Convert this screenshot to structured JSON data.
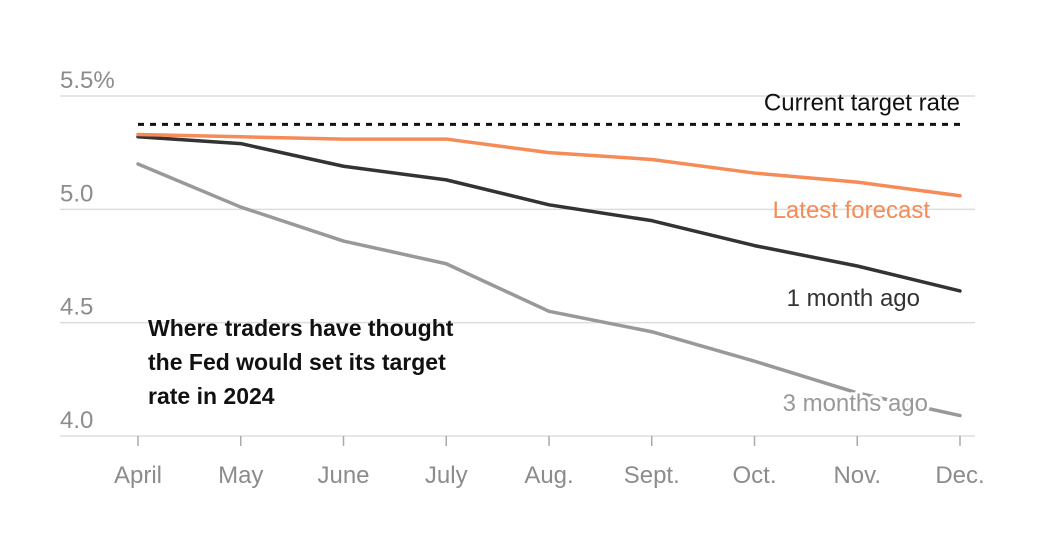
{
  "chart_data": {
    "type": "line",
    "title": "Where traders have thought the Fed would set its target rate in 2024",
    "title_lines": [
      "Where traders have thought",
      "the Fed would set its target",
      "rate in 2024"
    ],
    "categories": [
      "April",
      "May",
      "June",
      "July",
      "Aug.",
      "Sept.",
      "Oct.",
      "Nov.",
      "Dec."
    ],
    "ylim": [
      4.0,
      5.5
    ],
    "yticks": [
      4.0,
      4.5,
      5.0,
      5.5
    ],
    "ytick_labels": [
      "4.0",
      "4.5",
      "5.0",
      "5.5%"
    ],
    "grid": true,
    "reference_line": {
      "name": "Current target rate",
      "value": 5.375,
      "style": "dotted",
      "color": "#111111"
    },
    "series": [
      {
        "name": "Latest forecast",
        "color": "#f58b56",
        "values": [
          5.33,
          5.32,
          5.31,
          5.31,
          5.25,
          5.22,
          5.16,
          5.12,
          5.06
        ]
      },
      {
        "name": "1 month ago",
        "color": "#333333",
        "values": [
          5.32,
          5.29,
          5.19,
          5.13,
          5.02,
          4.95,
          4.84,
          4.75,
          4.64
        ]
      },
      {
        "name": "3 months ago",
        "color": "#999999",
        "values": [
          5.2,
          5.01,
          4.86,
          4.76,
          4.55,
          4.46,
          4.33,
          4.19,
          4.09
        ]
      }
    ]
  }
}
